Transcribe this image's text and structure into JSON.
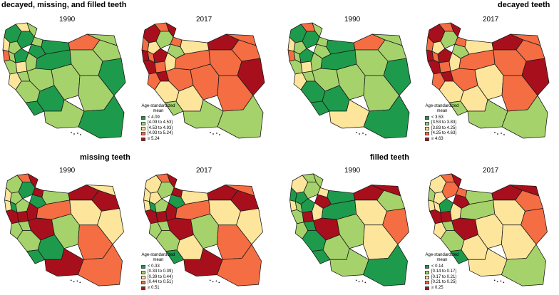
{
  "palette": [
    "#1e9a4c",
    "#a6d26b",
    "#fde59b",
    "#f46d43",
    "#a80f1c"
  ],
  "panels": [
    {
      "title": "decayed, missing, and filled teeth",
      "years": [
        "1990",
        "2017"
      ],
      "legend": {
        "title_line1": "Age-standardized",
        "title_line2": "mean",
        "items": [
          "< 4.09",
          "[4.09 to 4.53)",
          "[4.53 to 4.93)",
          "[4.93 to 5.24)",
          "≥ 5.24"
        ]
      },
      "regions_1990": [
        0,
        2,
        1,
        2,
        1,
        0,
        1,
        3,
        1,
        0,
        1,
        2,
        0,
        0,
        3,
        1,
        1,
        1,
        0,
        1,
        2,
        1,
        1,
        1,
        0,
        1,
        0,
        0,
        1,
        1,
        0
      ],
      "regions_2017": [
        4,
        3,
        4,
        3,
        2,
        1,
        3,
        4,
        3,
        4,
        4,
        3,
        1,
        2,
        4,
        3,
        3,
        2,
        3,
        3,
        3,
        4,
        3,
        2,
        4,
        3,
        1,
        2,
        3,
        1,
        1
      ]
    },
    {
      "title": "decayed teeth",
      "years": [
        "1990",
        "2017"
      ],
      "legend": {
        "title_line1": "Age-standardized",
        "title_line2": "mean",
        "items": [
          "< 3.53",
          "[3.53 to 3.83)",
          "[3.83 to 4.25)",
          "[4.25 to 4.63)",
          "≥ 4.63"
        ]
      },
      "regions_1990": [
        0,
        3,
        1,
        2,
        1,
        0,
        1,
        3,
        1,
        0,
        1,
        2,
        1,
        0,
        3,
        1,
        1,
        1,
        0,
        1,
        2,
        1,
        1,
        0,
        0,
        1,
        0,
        0,
        1,
        2,
        0
      ],
      "regions_2017": [
        4,
        3,
        4,
        3,
        2,
        1,
        3,
        4,
        3,
        4,
        4,
        3,
        1,
        2,
        4,
        3,
        3,
        2,
        3,
        3,
        3,
        4,
        3,
        2,
        4,
        2,
        1,
        2,
        3,
        1,
        1
      ]
    },
    {
      "title": "missing teeth",
      "years": [
        "1990",
        "2017"
      ],
      "legend": {
        "title_line1": "Age-standardized",
        "title_line2": "mean",
        "items": [
          "< 0.33",
          "[0.33 to 0.39)",
          "[0.39 to 0.44)",
          "[0.44 to 0.51)",
          "≥ 0.51"
        ]
      },
      "regions_1990": [
        1,
        3,
        4,
        2,
        1,
        0,
        4,
        2,
        0,
        1,
        4,
        4,
        0,
        1,
        4,
        2,
        4,
        4,
        3,
        2,
        1,
        1,
        4,
        1,
        2,
        1,
        0,
        0,
        3,
        4,
        3
      ],
      "regions_2017": [
        2,
        3,
        4,
        2,
        2,
        1,
        4,
        2,
        0,
        1,
        4,
        4,
        0,
        2,
        4,
        3,
        4,
        4,
        3,
        2,
        1,
        1,
        4,
        1,
        2,
        1,
        0,
        2,
        3,
        4,
        3
      ]
    },
    {
      "title": "filled teeth",
      "years": [
        "1990",
        "2017"
      ],
      "legend": {
        "title_line1": "Age-standardized",
        "title_line2": "mean",
        "items": [
          "< 0.14",
          "[0.14 to 0.17)",
          "[0.17 to 0.21)",
          "[0.21 to 0.25)",
          "≥ 0.25"
        ]
      },
      "regions_1990": [
        2,
        1,
        1,
        0,
        0,
        1,
        2,
        2,
        1,
        0,
        1,
        4,
        4,
        0,
        4,
        4,
        1,
        2,
        0,
        2,
        1,
        0,
        4,
        0,
        3,
        1,
        0,
        1,
        2,
        1,
        0
      ],
      "regions_2017": [
        2,
        3,
        4,
        1,
        2,
        3,
        3,
        2,
        2,
        0,
        4,
        4,
        4,
        1,
        4,
        4,
        3,
        2,
        1,
        2,
        2,
        1,
        4,
        1,
        3,
        2,
        0,
        2,
        2,
        2,
        1
      ]
    }
  ]
}
